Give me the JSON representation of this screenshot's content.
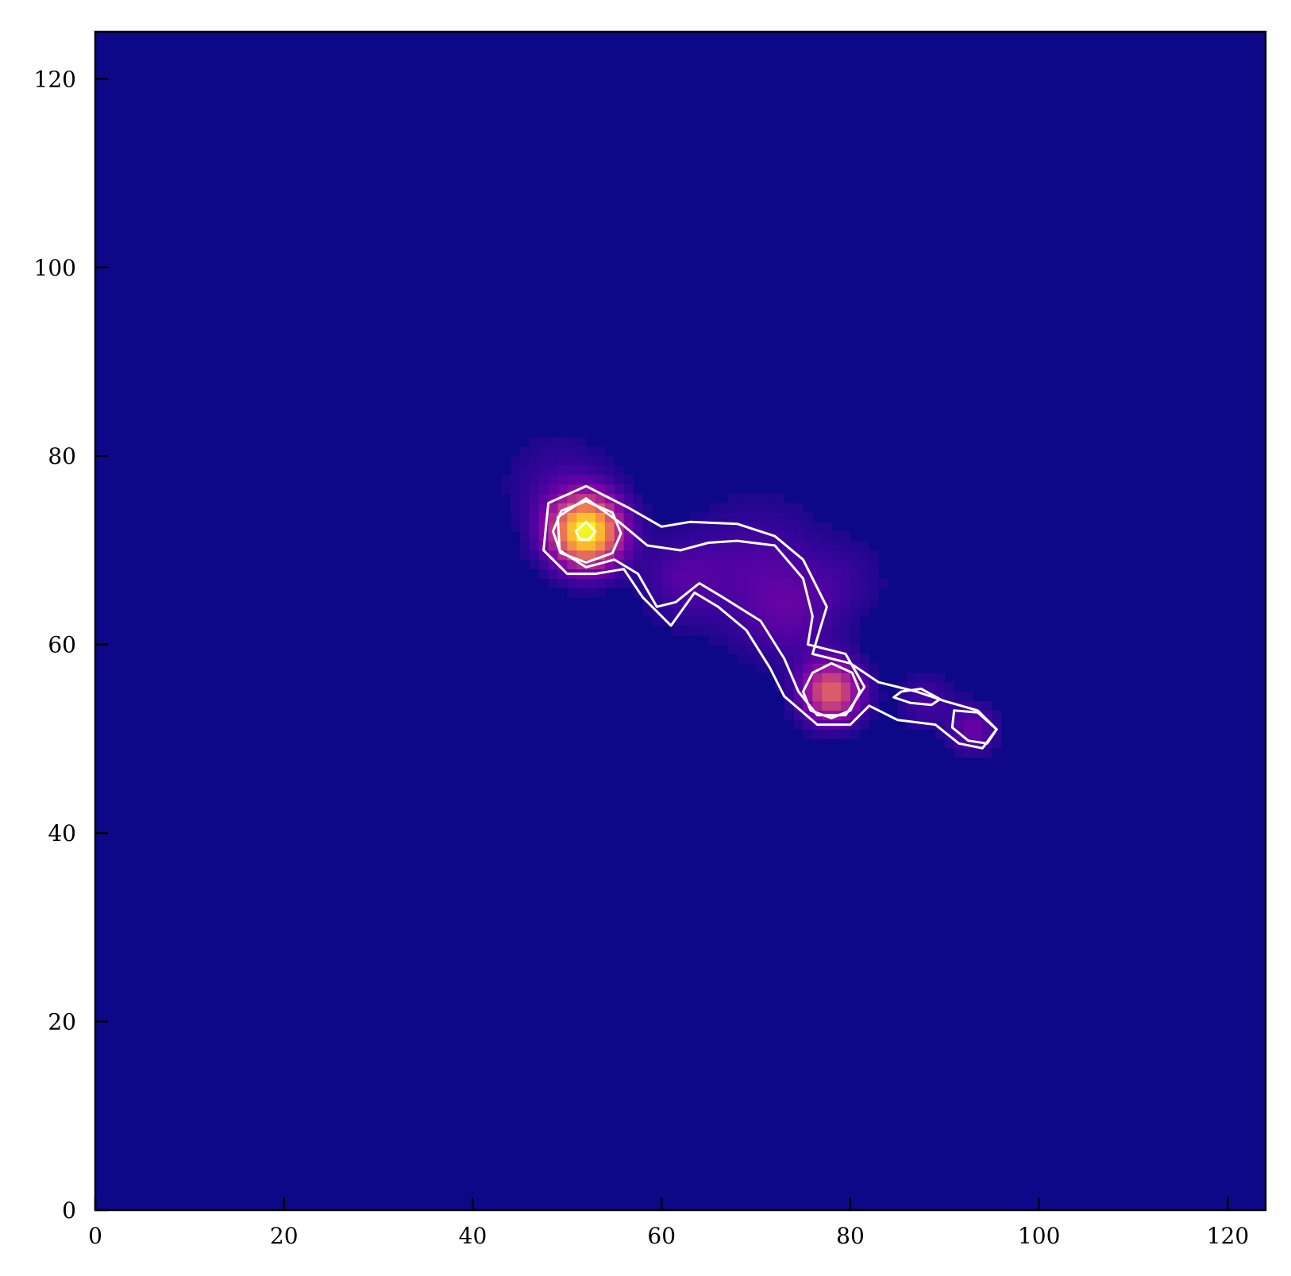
{
  "chart_data": {
    "type": "heatmap",
    "title": "",
    "xlabel": "",
    "ylabel": "",
    "xlim": [
      0,
      124
    ],
    "ylim": [
      0,
      125
    ],
    "grid": false,
    "legend": "none",
    "colormap": "plasma",
    "background_color": "#0d0887",
    "contour_color": "#ffffff",
    "x_ticks": [
      0,
      20,
      40,
      60,
      80,
      100,
      120
    ],
    "x_tick_labels": [
      "0",
      "20",
      "40",
      "60",
      "80",
      "100",
      "120"
    ],
    "y_ticks": [
      0,
      20,
      40,
      60,
      80,
      100,
      120
    ],
    "y_tick_labels": [
      "0",
      "20",
      "40",
      "60",
      "80",
      "100",
      "120"
    ],
    "sources": [
      {
        "x": 52,
        "y": 72,
        "peak": 1.0,
        "sigma": 2.6
      },
      {
        "x": 78,
        "y": 55,
        "peak": 0.6,
        "sigma": 2.2
      },
      {
        "x": 93,
        "y": 51,
        "peak": 0.2,
        "sigma": 1.8
      },
      {
        "x": 88,
        "y": 54,
        "peak": 0.12,
        "sigma": 2.0
      },
      {
        "x": 70,
        "y": 68,
        "peak": 0.13,
        "sigma": 5.0
      },
      {
        "x": 74,
        "y": 63,
        "peak": 0.12,
        "sigma": 3.5
      },
      {
        "x": 62,
        "y": 67,
        "peak": 0.12,
        "sigma": 3.0
      },
      {
        "x": 49,
        "y": 77,
        "peak": 0.09,
        "sigma": 4.0
      },
      {
        "x": 80,
        "y": 67,
        "peak": 0.06,
        "sigma": 3.0
      }
    ],
    "contours": [
      {
        "name": "outer",
        "points": [
          [
            52,
            76.8
          ],
          [
            56.5,
            74.5
          ],
          [
            60,
            72.5
          ],
          [
            63,
            73
          ],
          [
            68,
            72.8
          ],
          [
            72,
            71.5
          ],
          [
            75,
            69
          ],
          [
            77.5,
            64
          ],
          [
            76,
            59
          ],
          [
            80,
            58
          ],
          [
            83,
            56
          ],
          [
            87,
            55
          ],
          [
            90,
            54
          ],
          [
            93.5,
            53
          ],
          [
            95.5,
            51
          ],
          [
            94,
            49
          ],
          [
            91.5,
            49.5
          ],
          [
            89,
            51.5
          ],
          [
            85,
            52
          ],
          [
            82,
            53.5
          ],
          [
            80,
            51.5
          ],
          [
            76.5,
            51.5
          ],
          [
            73,
            54.5
          ],
          [
            71.5,
            57.5
          ],
          [
            69,
            61.5
          ],
          [
            66,
            64
          ],
          [
            63.5,
            65.5
          ],
          [
            61,
            62
          ],
          [
            58,
            65
          ],
          [
            56,
            68
          ],
          [
            53,
            67.5
          ],
          [
            50,
            67.5
          ],
          [
            47.5,
            70
          ],
          [
            48,
            75
          ]
        ]
      },
      {
        "name": "middle",
        "points": [
          [
            52,
            75.5
          ],
          [
            55.5,
            73
          ],
          [
            58.5,
            70.5
          ],
          [
            62,
            70
          ],
          [
            65,
            70.8
          ],
          [
            68,
            71
          ],
          [
            72,
            70.5
          ],
          [
            75,
            67
          ],
          [
            76,
            63
          ],
          [
            75.5,
            60
          ],
          [
            79.5,
            59
          ],
          [
            81.5,
            55.5
          ],
          [
            79.5,
            52.5
          ],
          [
            76.5,
            52.5
          ],
          [
            74.5,
            55
          ],
          [
            73,
            58.5
          ],
          [
            70.5,
            62.5
          ],
          [
            66.5,
            65
          ],
          [
            64,
            66.5
          ],
          [
            61.5,
            64.5
          ],
          [
            59.5,
            64
          ],
          [
            57.5,
            67.5
          ],
          [
            55,
            69
          ],
          [
            52,
            68.2
          ],
          [
            49.2,
            70
          ],
          [
            49,
            73.5
          ]
        ]
      },
      {
        "name": "inner-left",
        "points": [
          [
            52,
            75.2
          ],
          [
            54.8,
            74
          ],
          [
            55.7,
            71.8
          ],
          [
            54.8,
            69.7
          ],
          [
            52,
            68.7
          ],
          [
            49.3,
            69.7
          ],
          [
            48.5,
            72
          ],
          [
            49.4,
            74.2
          ]
        ]
      },
      {
        "name": "inner-mid",
        "points": [
          [
            78,
            58
          ],
          [
            80.2,
            57
          ],
          [
            81,
            55
          ],
          [
            80,
            53
          ],
          [
            78,
            52.2
          ],
          [
            75.8,
            53
          ],
          [
            75,
            55
          ],
          [
            76,
            57
          ]
        ]
      },
      {
        "name": "peak-left",
        "points": [
          [
            52,
            73
          ],
          [
            53,
            72
          ],
          [
            52.3,
            71.1
          ],
          [
            51.4,
            71.1
          ],
          [
            50.9,
            72
          ]
        ]
      },
      {
        "name": "blob-a",
        "points": [
          [
            85.4,
            55
          ],
          [
            87.5,
            55.3
          ],
          [
            89.5,
            54.2
          ],
          [
            88.6,
            53.6
          ],
          [
            86.4,
            53.8
          ],
          [
            84.6,
            54.4
          ]
        ]
      },
      {
        "name": "blob-b",
        "points": [
          [
            91,
            53
          ],
          [
            93.5,
            52.8
          ],
          [
            95.5,
            51
          ],
          [
            94.5,
            49.5
          ],
          [
            92.5,
            49.8
          ],
          [
            90.8,
            51.2
          ]
        ]
      }
    ]
  }
}
